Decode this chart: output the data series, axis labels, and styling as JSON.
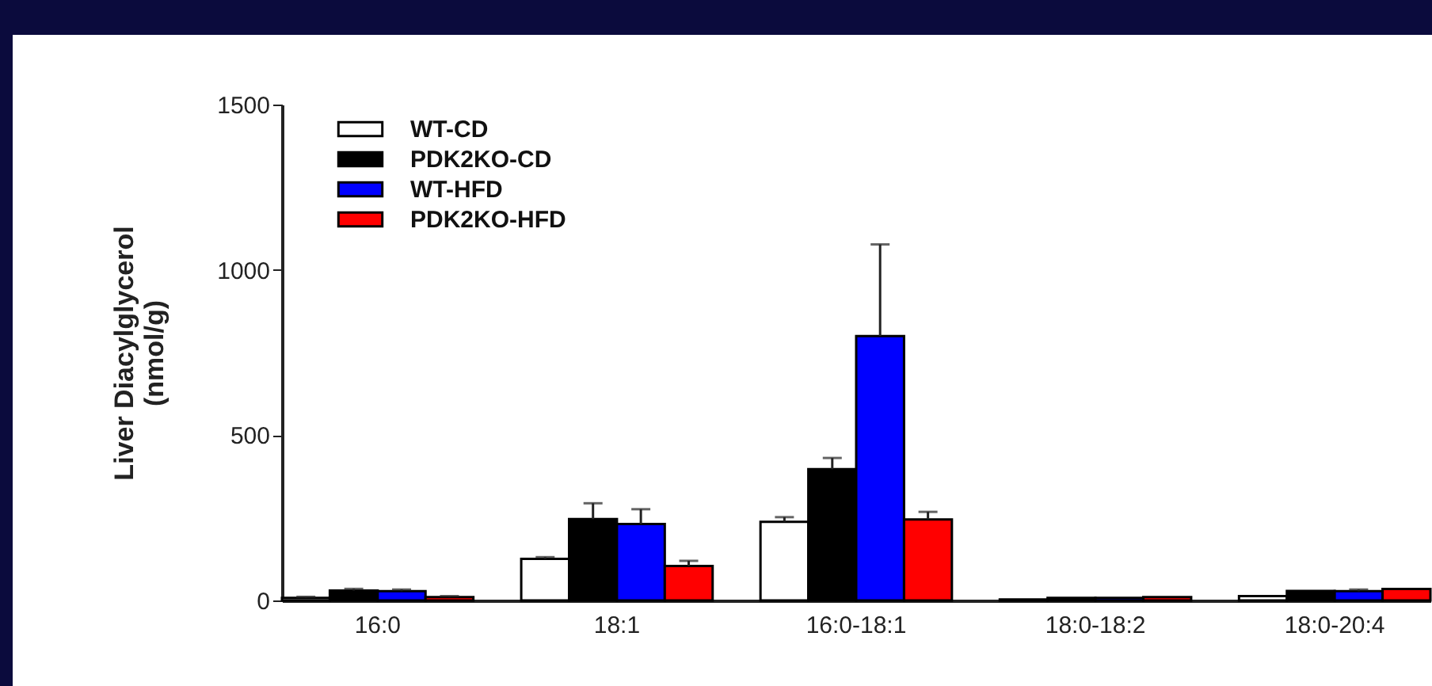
{
  "chart_data": {
    "type": "bar",
    "ylabel": "Liver Diacylglycerol (nmol/g)",
    "categories": [
      "16:0",
      "18:1",
      "16:0-18:1",
      "18:0-18:2",
      "18:0-20:4"
    ],
    "series": [
      {
        "name": "WT-CD",
        "color": "#ffffff",
        "values": [
          8,
          126,
          238,
          3,
          13
        ],
        "errors": [
          3,
          5,
          14,
          null,
          null
        ]
      },
      {
        "name": "PDK2KO-CD",
        "color": "#000000",
        "values": [
          30,
          246,
          397,
          8,
          29
        ],
        "errors": [
          5,
          48,
          34,
          null,
          null
        ]
      },
      {
        "name": "WT-HFD",
        "color": "#0000ff",
        "values": [
          28,
          231,
          800,
          8,
          28
        ],
        "errors": [
          5,
          45,
          277,
          null,
          5
        ]
      },
      {
        "name": "PDK2KO-HFD",
        "color": "#ff0000",
        "values": [
          10,
          104,
          245,
          10,
          35
        ],
        "errors": [
          3,
          16,
          23,
          null,
          null
        ]
      }
    ],
    "ylim": [
      0,
      1500
    ],
    "yticks": [
      0,
      500,
      1000,
      1500
    ],
    "grid": false,
    "legend": "top left"
  }
}
